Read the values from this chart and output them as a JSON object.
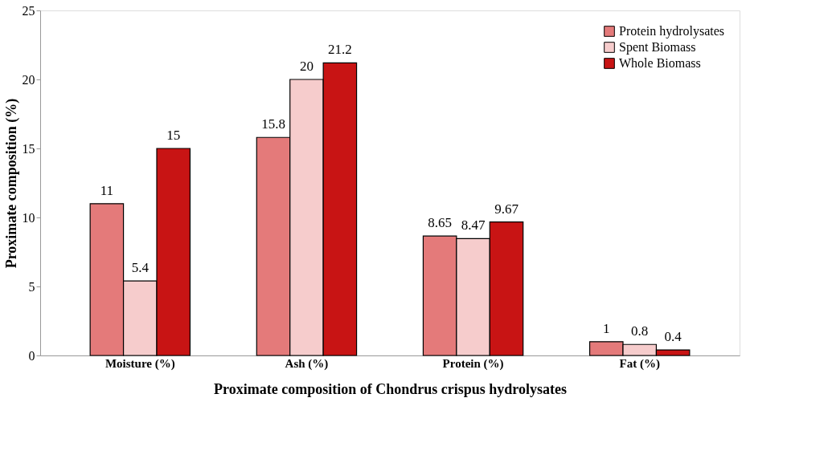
{
  "chart_data": {
    "type": "bar",
    "xlabel": "Proximate composition of Chondrus crispus hydrolysates",
    "ylabel": "Proximate composition (%)",
    "categories": [
      "Moisture (%)",
      "Ash (%)",
      "Protein (%)",
      "Fat (%)"
    ],
    "series": [
      {
        "name": "Protein hydrolysates",
        "color": "#e47a7a",
        "values": [
          11,
          15.8,
          8.65,
          1
        ]
      },
      {
        "name": "Spent Biomass",
        "color": "#f6cccc",
        "values": [
          5.4,
          20,
          8.47,
          0.8
        ]
      },
      {
        "name": "Whole Biomass",
        "color": "#c81414",
        "values": [
          15,
          21.2,
          9.67,
          0.4
        ]
      }
    ],
    "ylim": [
      0,
      25
    ],
    "yticks": [
      0,
      5,
      10,
      15,
      20,
      25
    ],
    "grid": false,
    "legend": "top right",
    "data_labels": true
  }
}
